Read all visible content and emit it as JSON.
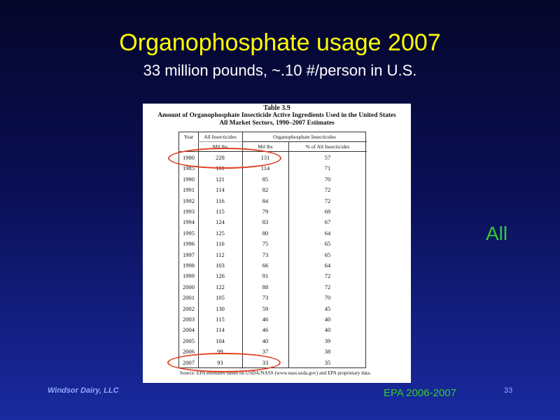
{
  "slide": {
    "title": "Organophosphate usage 2007",
    "subtitle": "33 million pounds, ~.10 #/person in U.S.",
    "side_label": "All",
    "footer_left": "Windsor Dairy, LLC",
    "footer_center": "EPA 2006-2007",
    "slide_number": "33",
    "colors": {
      "title": "#ffff00",
      "accent_green": "#33cc33",
      "highlight_oval": "#e04020"
    }
  },
  "table": {
    "label": "Table 3.9",
    "caption_line1": "Amount of Organophosphate Insecticide Active Ingredients Used in the United States",
    "caption_line2": "All Market Sectors, 1990–2007 Estimates",
    "headers": {
      "year": "Year",
      "all_insecticides": "All Insecticides",
      "op_insecticides": "Organophosphate Insecticides",
      "unit_all": "Mil lbs",
      "unit_op": "Mil lbs",
      "pct": "% of All Insecticides"
    },
    "rows": [
      {
        "year": "1980",
        "all": "228",
        "op": "131",
        "pct": "57"
      },
      {
        "year": "1985",
        "all": "161",
        "op": "114",
        "pct": "71"
      },
      {
        "year": "1990",
        "all": "121",
        "op": "85",
        "pct": "70"
      },
      {
        "year": "1991",
        "all": "114",
        "op": "82",
        "pct": "72"
      },
      {
        "year": "1992",
        "all": "116",
        "op": "84",
        "pct": "72"
      },
      {
        "year": "1993",
        "all": "115",
        "op": "79",
        "pct": "69"
      },
      {
        "year": "1994",
        "all": "124",
        "op": "83",
        "pct": "67"
      },
      {
        "year": "1995",
        "all": "125",
        "op": "80",
        "pct": "64"
      },
      {
        "year": "1996",
        "all": "116",
        "op": "75",
        "pct": "65"
      },
      {
        "year": "1997",
        "all": "112",
        "op": "73",
        "pct": "65"
      },
      {
        "year": "1998",
        "all": "103",
        "op": "66",
        "pct": "64"
      },
      {
        "year": "1999",
        "all": "126",
        "op": "91",
        "pct": "72"
      },
      {
        "year": "2000",
        "all": "122",
        "op": "88",
        "pct": "72"
      },
      {
        "year": "2001",
        "all": "105",
        "op": "73",
        "pct": "70"
      },
      {
        "year": "2002",
        "all": "130",
        "op": "59",
        "pct": "45"
      },
      {
        "year": "2003",
        "all": "115",
        "op": "46",
        "pct": "40"
      },
      {
        "year": "2004",
        "all": "114",
        "op": "46",
        "pct": "40"
      },
      {
        "year": "2005",
        "all": "104",
        "op": "40",
        "pct": "39"
      },
      {
        "year": "2006",
        "all": "99",
        "op": "37",
        "pct": "38"
      },
      {
        "year": "2007",
        "all": "93",
        "op": "33",
        "pct": "35"
      }
    ],
    "source": "Source: EPA estimates based on USDA/NASS (www.nass.usda.gov) and EPA proprietary data."
  }
}
